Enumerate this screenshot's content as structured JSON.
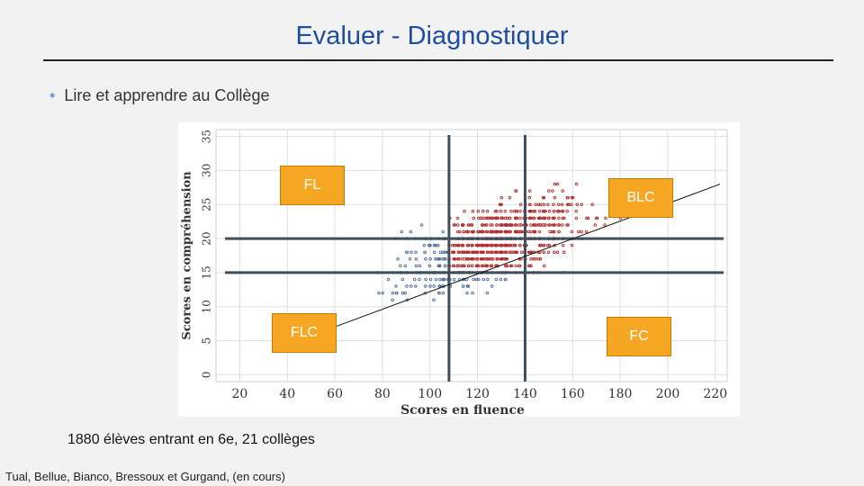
{
  "slide": {
    "title": "Evaluer - Diagnostiquer",
    "bullet": "Lire et apprendre au Collège",
    "caption": "1880 élèves entrant en 6e, 21 collèges",
    "credit": "Tual, Bellue, Bianco, Bressoux et Gurgand, (en cours)"
  },
  "annotations": {
    "fl": "FL",
    "blc": "BLC",
    "flc": "FLC",
    "fc": "FC"
  },
  "colors": {
    "title": "#1f4e9e",
    "box": "#f5a623",
    "threshold_lines": "#3d4f5c",
    "points_blue": "#4f6f9a",
    "points_red": "#b03030"
  },
  "chart_data": {
    "type": "scatter",
    "xlabel": "Scores en fluence",
    "ylabel": "Scores en compréhension",
    "xlim": [
      10,
      225
    ],
    "ylim": [
      -1,
      36
    ],
    "xticks": [
      20,
      40,
      60,
      80,
      100,
      120,
      140,
      160,
      180,
      200,
      220
    ],
    "yticks": [
      0,
      5,
      10,
      15,
      20,
      25,
      30,
      35
    ],
    "grid": true,
    "thresholds": {
      "x": [
        108,
        140
      ],
      "y": [
        15,
        20
      ]
    },
    "trend_line": {
      "x": [
        52,
        222
      ],
      "y": [
        6,
        28
      ]
    },
    "point_count": 1880
  }
}
